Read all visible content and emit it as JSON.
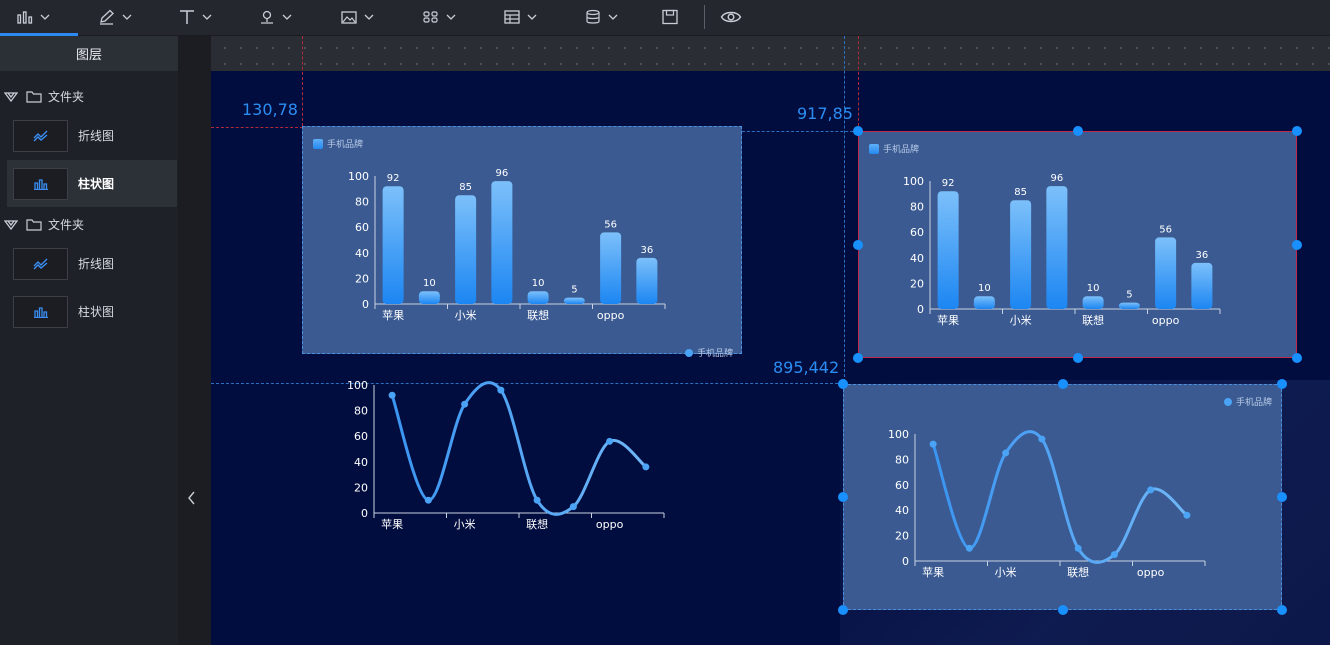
{
  "toolbar": {
    "items": [
      {
        "name": "chart-tool",
        "icon": "bar-chart-icon"
      },
      {
        "name": "pen-tool",
        "icon": "pen-icon"
      },
      {
        "name": "text-tool",
        "icon": "text-icon"
      },
      {
        "name": "map-tool",
        "icon": "map-pin-icon"
      },
      {
        "name": "image-tool",
        "icon": "image-icon"
      },
      {
        "name": "component-tool",
        "icon": "grid-icon"
      },
      {
        "name": "table-tool",
        "icon": "table-icon"
      },
      {
        "name": "data-tool",
        "icon": "database-icon"
      },
      {
        "name": "save-tool",
        "icon": "save-icon"
      },
      {
        "name": "preview-tool",
        "icon": "eye-icon"
      }
    ]
  },
  "sidebar": {
    "title": "图层",
    "folders": [
      {
        "label": "文件夹",
        "items": [
          {
            "label": "折线图",
            "type": "line"
          },
          {
            "label": "柱状图",
            "type": "bar",
            "active": true
          }
        ]
      },
      {
        "label": "文件夹",
        "items": [
          {
            "label": "折线图",
            "type": "line"
          },
          {
            "label": "柱状图",
            "type": "bar"
          }
        ]
      }
    ]
  },
  "canvas": {
    "coords": [
      "130,78",
      "917,85",
      "895,442"
    ],
    "legend_label": "手机品牌"
  },
  "colors": {
    "accent": "#1890ff",
    "card": "#3a5a91",
    "canvas": "#020d3f",
    "guide": "#2a6fc0",
    "selected_border": "#c02a4a"
  },
  "chart_data": [
    {
      "type": "bar",
      "title": "",
      "series": [
        {
          "name": "手机品牌",
          "values": [
            92,
            10,
            85,
            96,
            10,
            5,
            56,
            36
          ]
        }
      ],
      "x_labels": [
        "苹果",
        "小米",
        "联想",
        "oppo"
      ],
      "ylim": [
        0,
        100
      ],
      "yticks": [
        0,
        20,
        40,
        60,
        80,
        100
      ],
      "legend": [
        "top-left",
        "bottom-right"
      ]
    },
    {
      "type": "bar",
      "title": "",
      "series": [
        {
          "name": "手机品牌",
          "values": [
            92,
            10,
            85,
            96,
            10,
            5,
            56,
            36
          ]
        }
      ],
      "x_labels": [
        "苹果",
        "小米",
        "联想",
        "oppo"
      ],
      "ylim": [
        0,
        100
      ],
      "yticks": [
        0,
        20,
        40,
        60,
        80,
        100
      ],
      "legend": "top-left"
    },
    {
      "type": "line",
      "title": "",
      "series": [
        {
          "name": "",
          "values": [
            92,
            10,
            85,
            96,
            10,
            5,
            56,
            36
          ]
        }
      ],
      "x_labels": [
        "苹果",
        "小米",
        "联想",
        "oppo"
      ],
      "ylim": [
        0,
        100
      ],
      "yticks": [
        0,
        20,
        40,
        60,
        80,
        100
      ],
      "legend": "none"
    },
    {
      "type": "line",
      "title": "",
      "series": [
        {
          "name": "手机品牌",
          "values": [
            92,
            10,
            85,
            96,
            10,
            5,
            56,
            36
          ]
        }
      ],
      "x_labels": [
        "苹果",
        "小米",
        "联想",
        "oppo"
      ],
      "ylim": [
        0,
        100
      ],
      "yticks": [
        0,
        20,
        40,
        60,
        80,
        100
      ],
      "legend": "top-right"
    }
  ]
}
